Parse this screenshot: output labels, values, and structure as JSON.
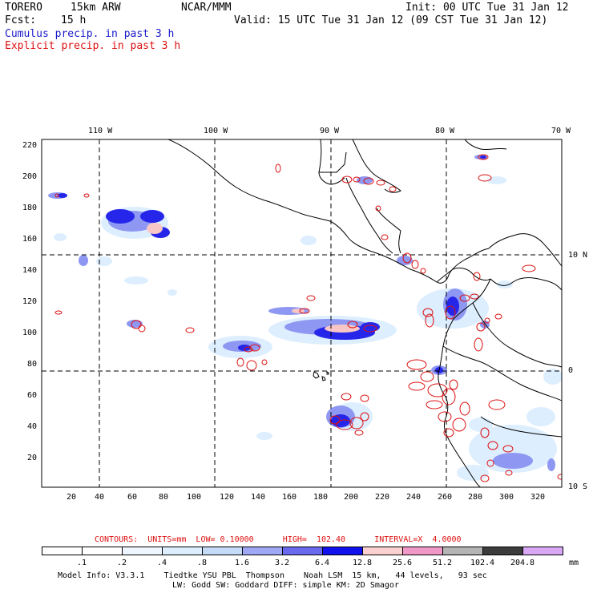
{
  "header": {
    "model": "TORERO",
    "resolution": "15km ARW",
    "org": "NCAR/MMM",
    "init": "Init: 00 UTC Tue 31 Jan 12",
    "fcst_label": "Fcst:",
    "fcst_value": "15 h",
    "valid": "Valid: 15 UTC Tue 31 Jan 12 (09 CST Tue 31 Jan 12)",
    "cumulus": "Cumulus precip. in past 3 h",
    "explicit": "Explicit precip. in past 3 h"
  },
  "map": {
    "lon_labels": [
      "110 W",
      "100 W",
      "90 W",
      "80 W",
      "70 W"
    ],
    "lat_labels": [
      "10 N",
      "0",
      "10 S"
    ],
    "y_ticks": [
      "220",
      "200",
      "180",
      "160",
      "140",
      "120",
      "100",
      "80",
      "60",
      "40",
      "20"
    ],
    "x_ticks": [
      "20",
      "40",
      "60",
      "80",
      "100",
      "120",
      "140",
      "160",
      "180",
      "200",
      "220",
      "240",
      "260",
      "280",
      "300",
      "320"
    ],
    "colors": {
      "cumulus": "#3333ee",
      "explicit": "#dd1111",
      "coast": "#000000"
    }
  },
  "footer": {
    "contours": "CONTOURS:  UNITS=mm  LOW= 0.10000      HIGH=  102.40      INTERVAL=X  4.0000",
    "units": "mm",
    "colorbar": {
      "labels": [
        ".1",
        ".2",
        ".4",
        ".8",
        "1.6",
        "3.2",
        "6.4",
        "12.8",
        "25.6",
        "51.2",
        "102.4",
        "204.8"
      ],
      "colors": [
        "#ffffff",
        "#ffffff",
        "#eef6ff",
        "#ddeeff",
        "#c4daf6",
        "#9fa8f4",
        "#6a6aef",
        "#1111ee",
        "#fbd0d0",
        "#f098c8",
        "#b4b4b4",
        "#3c3c3c",
        "#d8a8f4"
      ]
    },
    "model_info_1": "Model Info: V3.3.1    Tiedtke YSU PBL  Thompson    Noah LSM  15 km,   44 levels,   93 sec",
    "model_info_2": "LW: Godd SW: Goddard DIFF: simple KM: 2D Smagor"
  }
}
